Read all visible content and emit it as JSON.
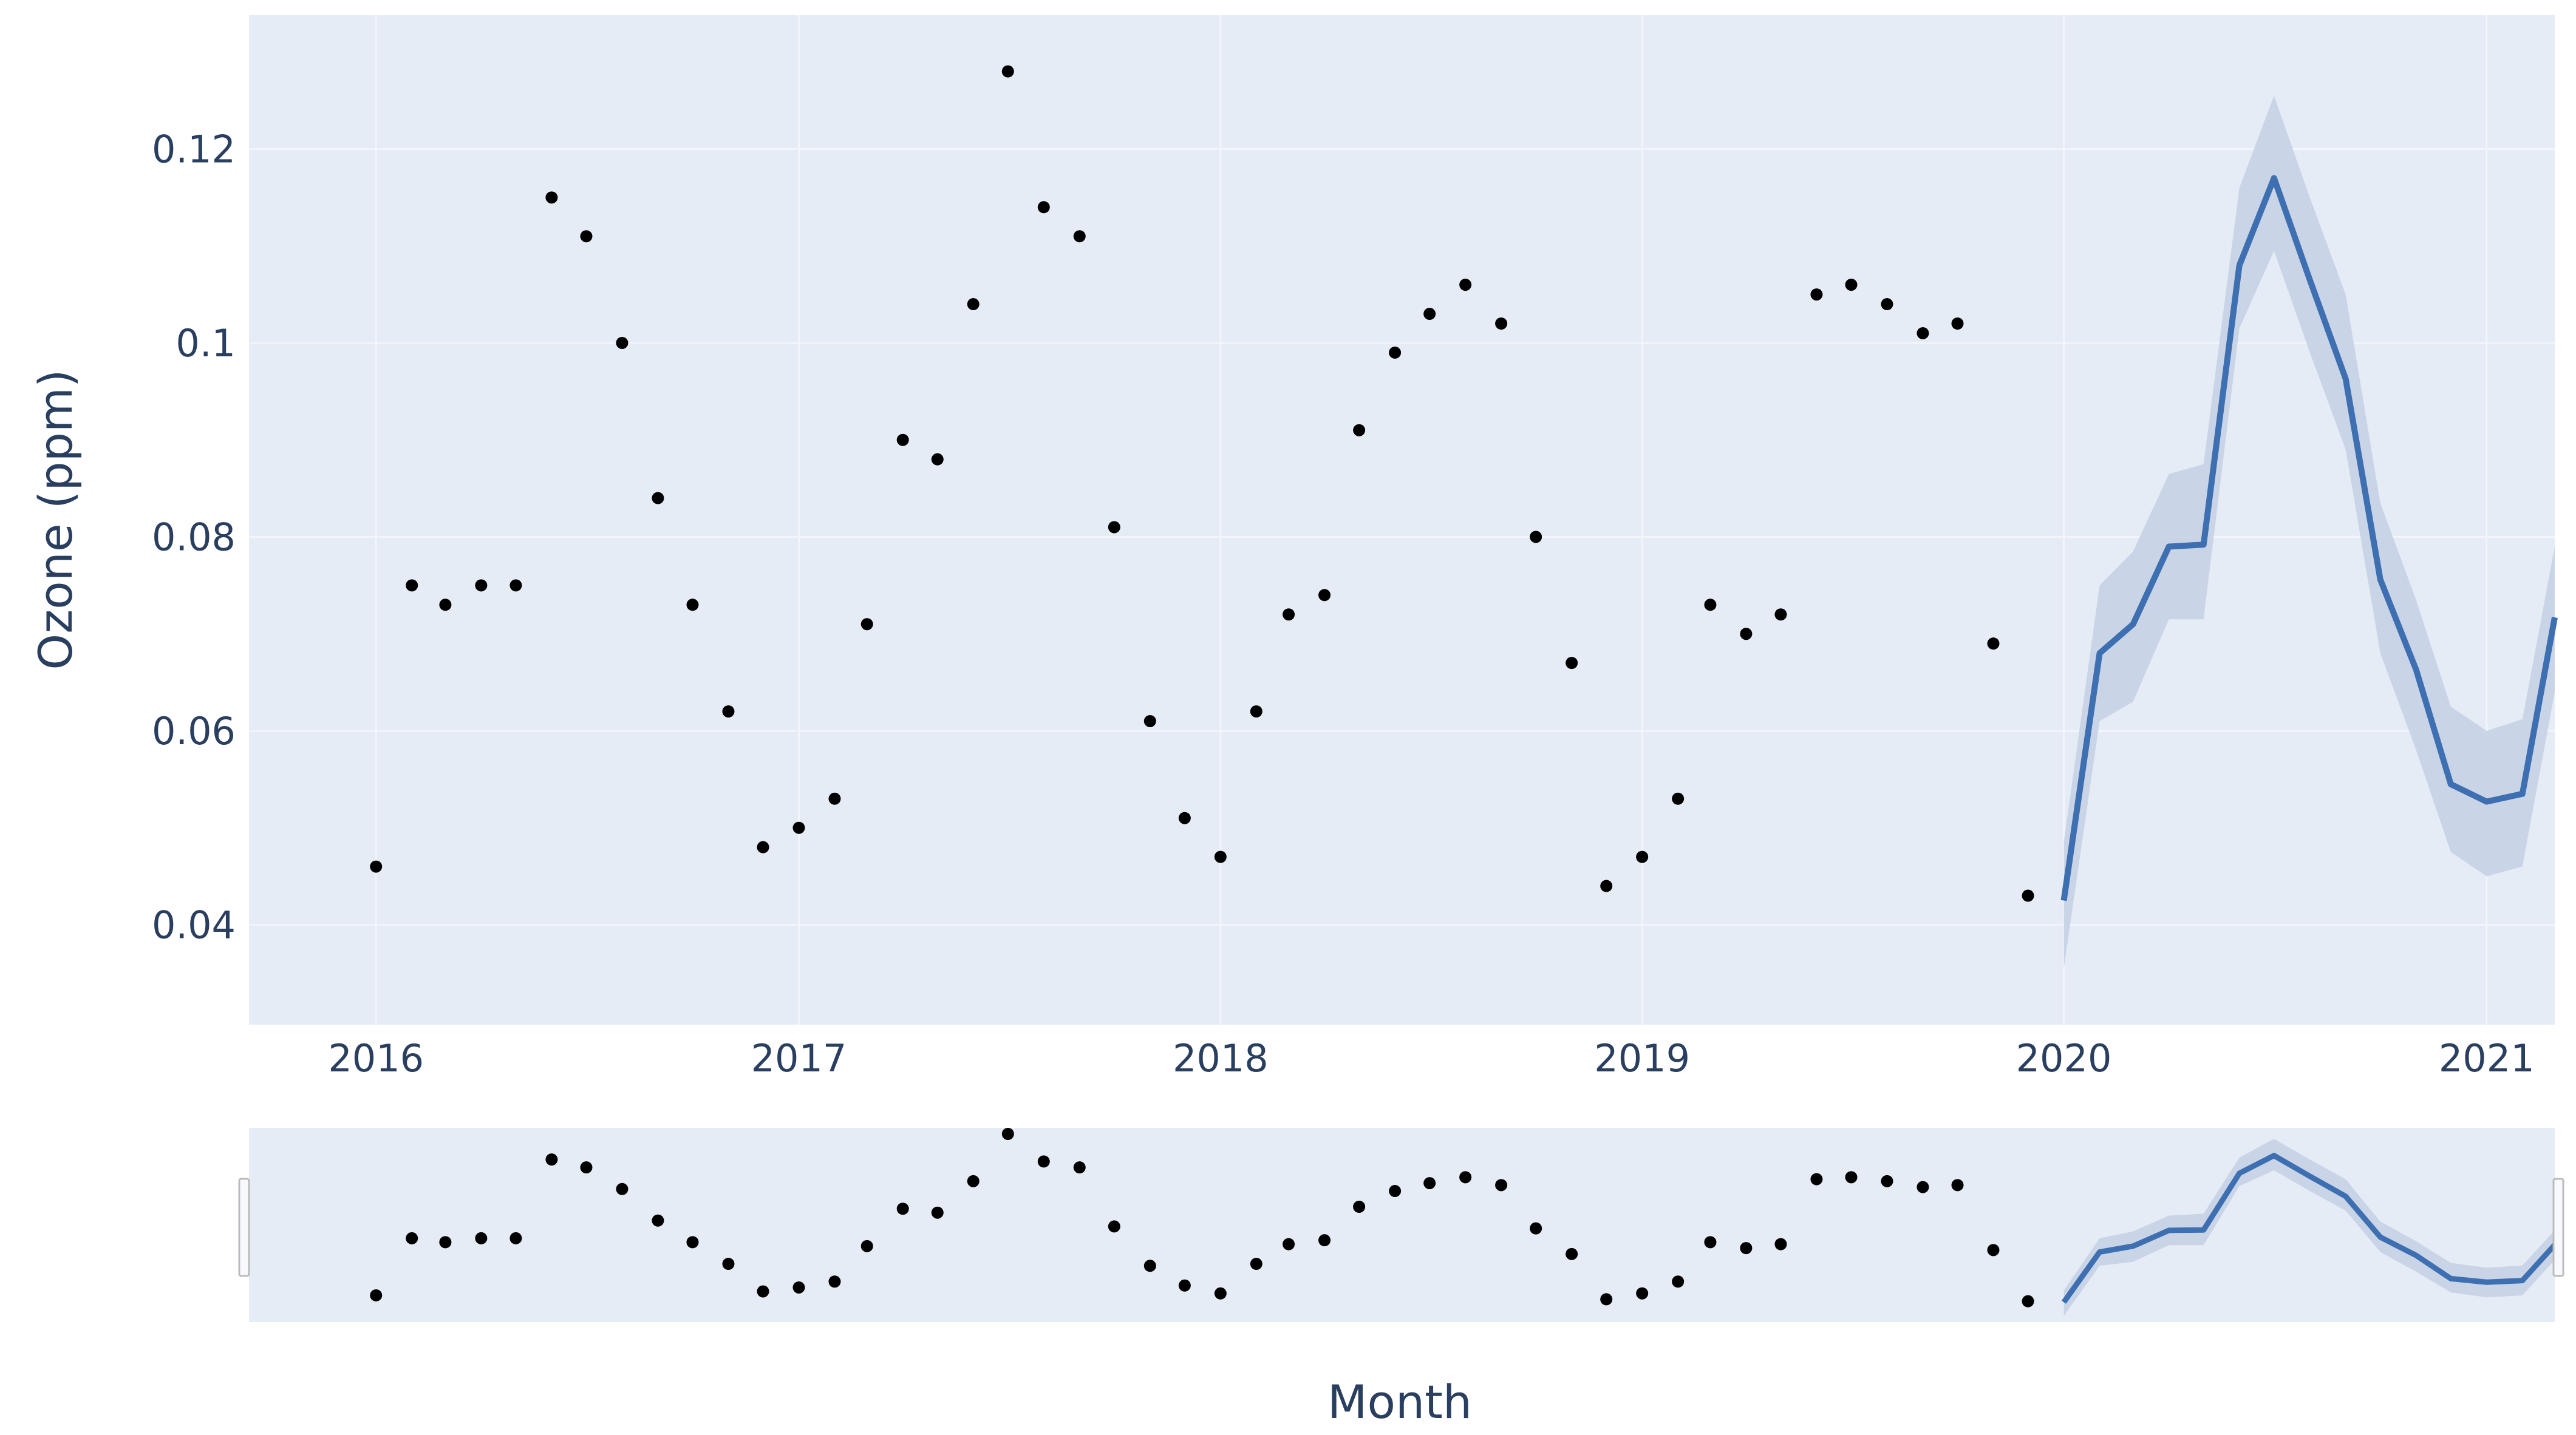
{
  "chart_data": {
    "type": "scatter",
    "title": "",
    "xlabel": "Month",
    "ylabel": "Ozone (ppm)",
    "ylim": [
      0.0297,
      0.1338
    ],
    "xlim": [
      "2015-09-13",
      "2021-03-01"
    ],
    "x_ticks": [
      "2016",
      "2017",
      "2018",
      "2019",
      "2020",
      "2021"
    ],
    "y_ticks": [
      "0.04",
      "0.06",
      "0.08",
      "0.1",
      "0.12"
    ],
    "grid": true,
    "legend": "none",
    "range_slider": true,
    "colors": {
      "plot_bg": "#e5ecf6",
      "grid": "#f2f5fa",
      "observed": "#000000",
      "forecast": "#3d6fb1",
      "interval": "#c5d3e6"
    },
    "series": [
      {
        "kind": "markers",
        "x": [
          "2016-01",
          "2016-02",
          "2016-03",
          "2016-04",
          "2016-05",
          "2016-06",
          "2016-07",
          "2016-08",
          "2016-09",
          "2016-10",
          "2016-11",
          "2016-12",
          "2017-01",
          "2017-02",
          "2017-03",
          "2017-04",
          "2017-05",
          "2017-06",
          "2017-07",
          "2017-08",
          "2017-09",
          "2017-10",
          "2017-11",
          "2017-12",
          "2018-01",
          "2018-02",
          "2018-03",
          "2018-04",
          "2018-05",
          "2018-06",
          "2018-07",
          "2018-08",
          "2018-09",
          "2018-10",
          "2018-11",
          "2018-12",
          "2019-01",
          "2019-02",
          "2019-03",
          "2019-04",
          "2019-05",
          "2019-06",
          "2019-07",
          "2019-08",
          "2019-09",
          "2019-10",
          "2019-11",
          "2019-12"
        ],
        "y": [
          0.046,
          0.075,
          0.073,
          0.075,
          0.075,
          0.115,
          0.111,
          0.1,
          0.084,
          0.073,
          0.062,
          0.048,
          0.05,
          0.053,
          0.071,
          0.09,
          0.088,
          0.104,
          0.128,
          0.114,
          0.111,
          0.081,
          0.061,
          0.051,
          0.047,
          0.062,
          0.072,
          0.074,
          0.091,
          0.099,
          0.103,
          0.106,
          0.102,
          0.08,
          0.067,
          0.044,
          0.047,
          0.053,
          0.073,
          0.07,
          0.072,
          0.105,
          0.106,
          0.104,
          0.101,
          0.102,
          0.069,
          0.043
        ]
      },
      {
        "kind": "line",
        "x": [
          "2020-01",
          "2020-02",
          "2020-03",
          "2020-04",
          "2020-05",
          "2020-06",
          "2020-07",
          "2020-08",
          "2020-09",
          "2020-10",
          "2020-11",
          "2020-12",
          "2021-01",
          "2021-02",
          "2021-03"
        ],
        "y": [
          0.0425,
          0.068,
          0.071,
          0.079,
          0.0792,
          0.108,
          0.117,
          0.1065,
          0.0963,
          0.0756,
          0.0663,
          0.0545,
          0.0527,
          0.0535,
          0.0717
        ],
        "lower": [
          0.0355,
          0.061,
          0.063,
          0.0715,
          0.0715,
          0.1015,
          0.1095,
          0.099,
          0.089,
          0.068,
          0.058,
          0.0475,
          0.045,
          0.046,
          0.064
        ],
        "upper": [
          0.0485,
          0.075,
          0.0785,
          0.0865,
          0.0875,
          0.116,
          0.1255,
          0.115,
          0.105,
          0.0835,
          0.0735,
          0.0625,
          0.06,
          0.0612,
          0.079
        ]
      }
    ]
  }
}
